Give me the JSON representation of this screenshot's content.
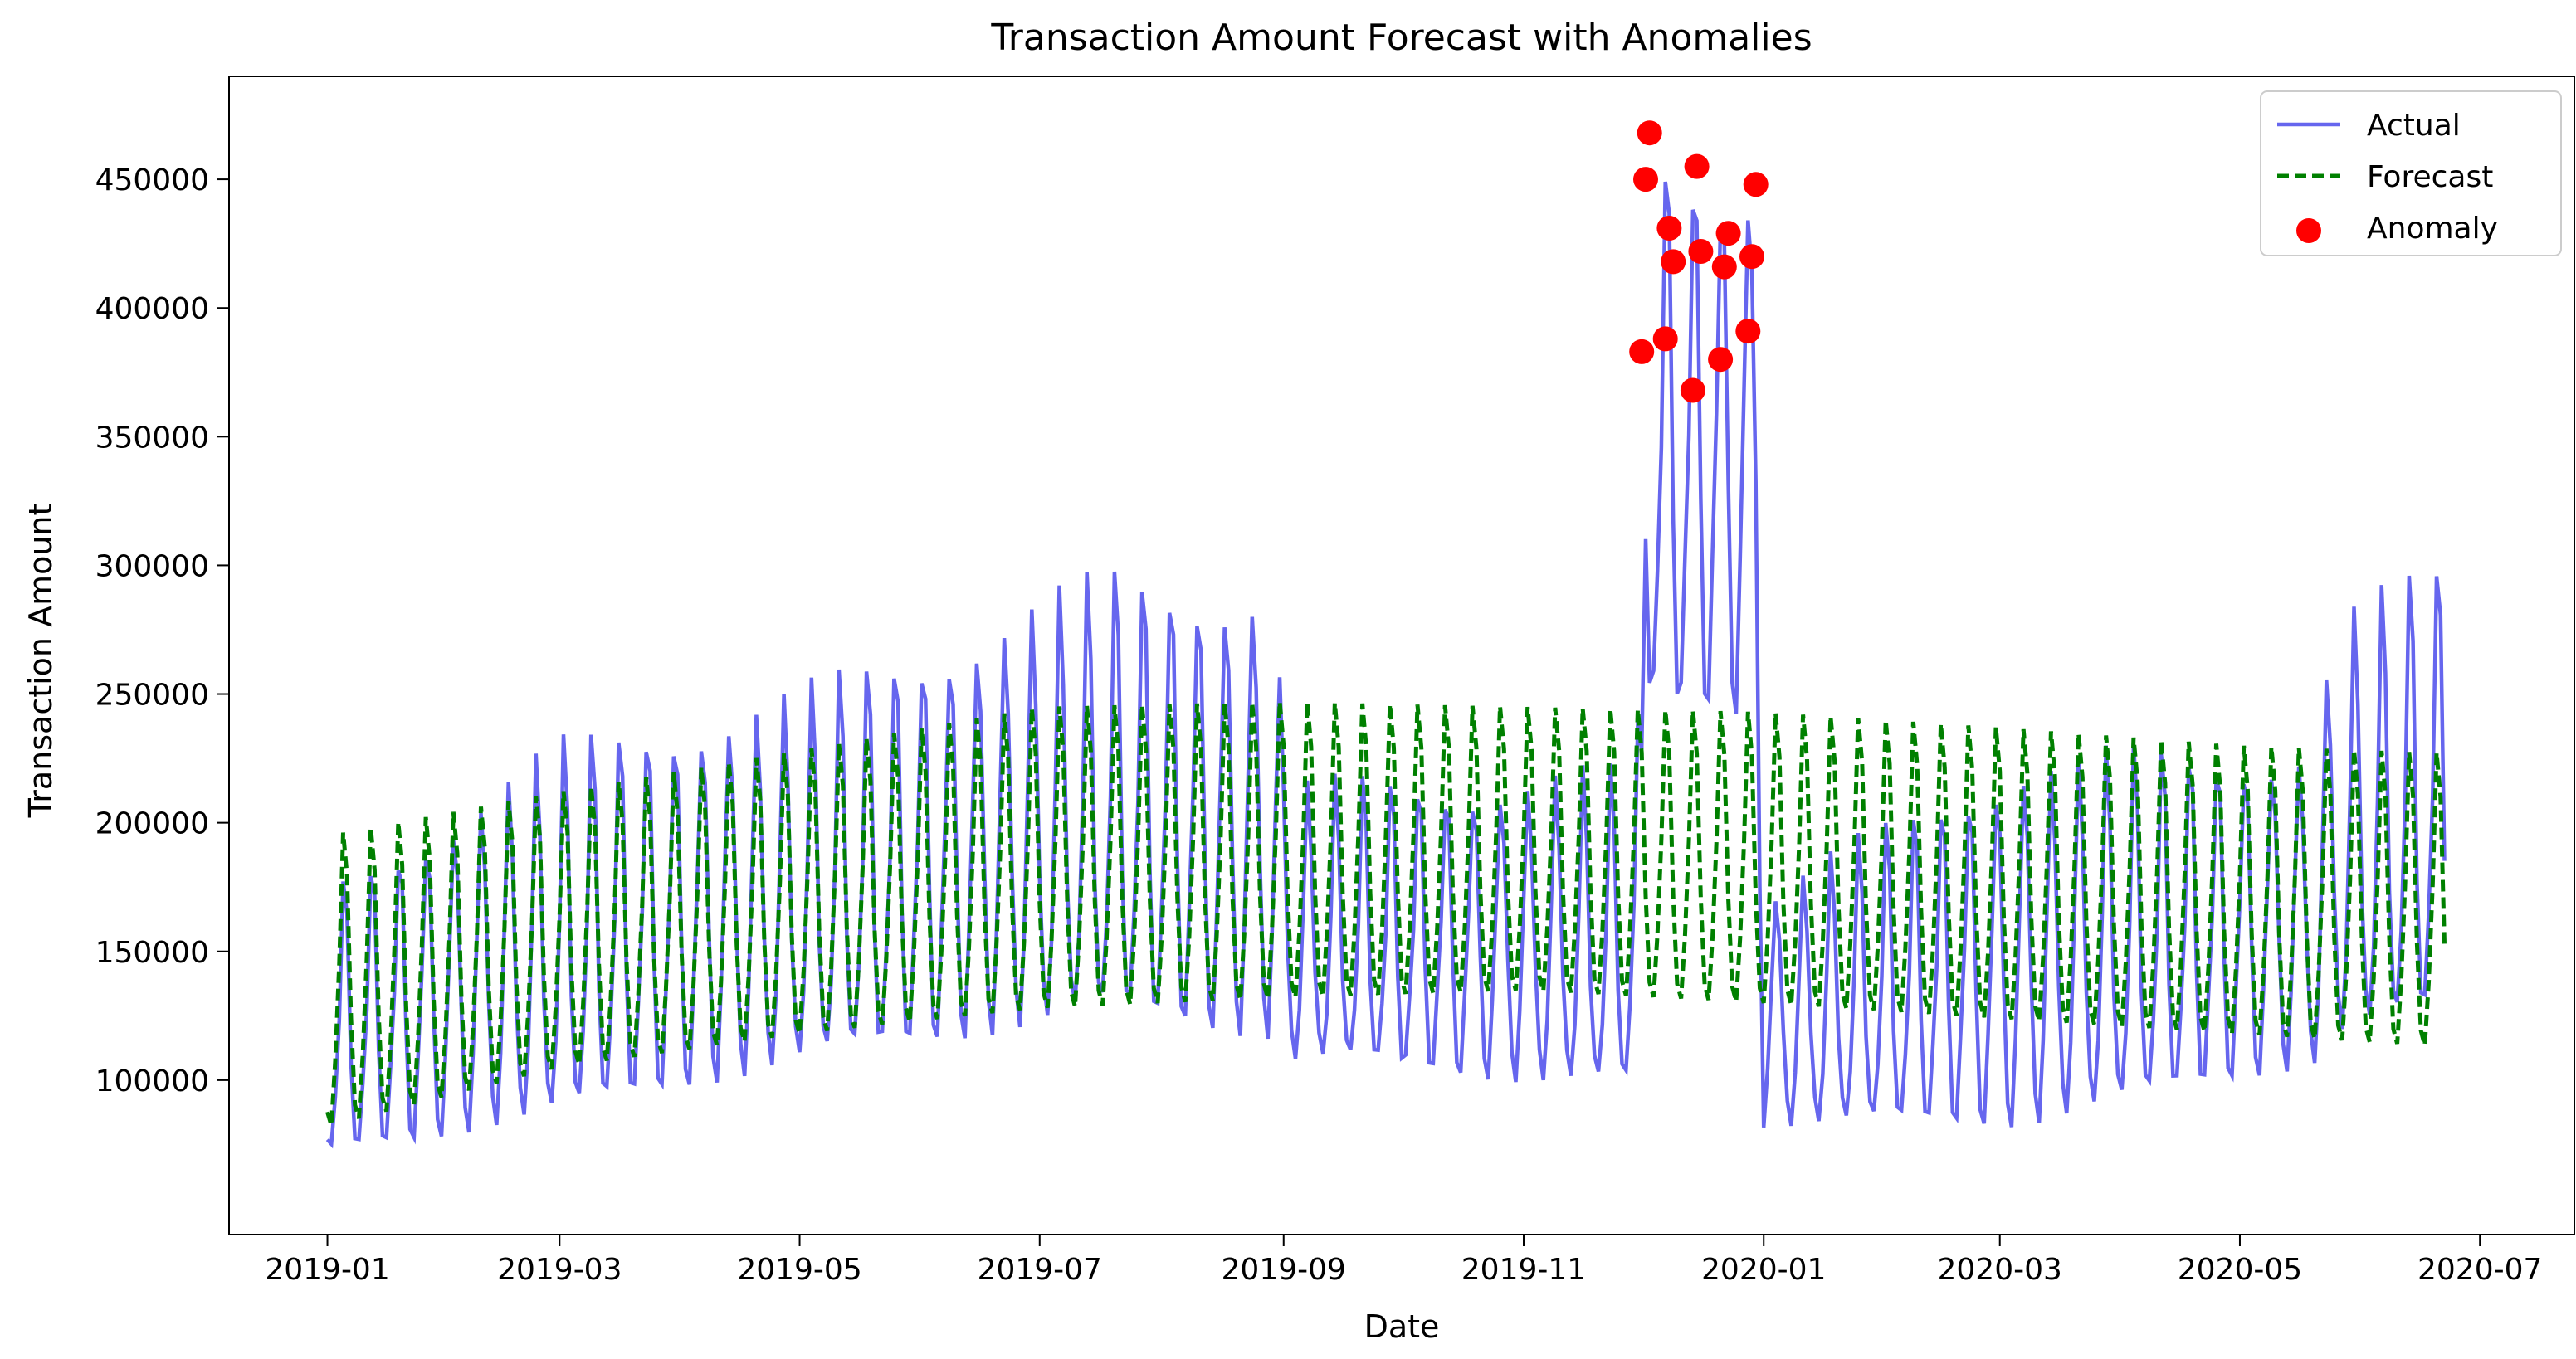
{
  "chart_data": {
    "type": "line",
    "title": "Transaction Amount Forecast with Anomalies",
    "xlabel": "Date",
    "ylabel": "Transaction Amount",
    "grid": false,
    "legend_position": "top-right",
    "x_start_date": "2019-01-01",
    "x_end_date": "2020-06-22",
    "xlim_days": [
      -25,
      571
    ],
    "ylim": [
      40000,
      490000
    ],
    "x_ticks": [
      {
        "day": 0,
        "label": "2019-01"
      },
      {
        "day": 59,
        "label": "2019-03"
      },
      {
        "day": 120,
        "label": "2019-05"
      },
      {
        "day": 181,
        "label": "2019-07"
      },
      {
        "day": 243,
        "label": "2019-09"
      },
      {
        "day": 304,
        "label": "2019-11"
      },
      {
        "day": 365,
        "label": "2020-01"
      },
      {
        "day": 425,
        "label": "2020-03"
      },
      {
        "day": 486,
        "label": "2020-05"
      },
      {
        "day": 547,
        "label": "2020-07"
      }
    ],
    "y_ticks": [
      {
        "value": 100000,
        "label": "100000"
      },
      {
        "value": 150000,
        "label": "150000"
      },
      {
        "value": 200000,
        "label": "200000"
      },
      {
        "value": 250000,
        "label": "250000"
      },
      {
        "value": 300000,
        "label": "300000"
      },
      {
        "value": 350000,
        "label": "350000"
      },
      {
        "value": 400000,
        "label": "400000"
      },
      {
        "value": 450000,
        "label": "450000"
      }
    ],
    "series": [
      {
        "name": "Actual",
        "label": "Actual",
        "color": "#6666ee",
        "style": "solid",
        "generator": "weekly",
        "anchors": [
          {
            "day": 0,
            "low": 72000,
            "high": 170000
          },
          {
            "day": 59,
            "low": 90000,
            "high": 225000
          },
          {
            "day": 120,
            "low": 110000,
            "high": 245000
          },
          {
            "day": 200,
            "low": 130000,
            "high": 290000
          },
          {
            "day": 240,
            "low": 120000,
            "high": 285000
          },
          {
            "day": 245,
            "low": 110000,
            "high": 210000
          },
          {
            "day": 330,
            "low": 100000,
            "high": 215000
          },
          {
            "day": 334,
            "low": 120000,
            "high": 240000
          },
          {
            "day": 335,
            "low": 250000,
            "high": 450000
          },
          {
            "day": 363,
            "low": 250000,
            "high": 450000
          },
          {
            "day": 365,
            "low": 85000,
            "high": 170000
          },
          {
            "day": 430,
            "low": 85000,
            "high": 220000
          },
          {
            "day": 505,
            "low": 110000,
            "high": 225000
          },
          {
            "day": 510,
            "low": 120000,
            "high": 270000
          },
          {
            "day": 538,
            "low": 130000,
            "high": 296000
          }
        ]
      },
      {
        "name": "Forecast",
        "label": "Forecast",
        "color": "#008000",
        "style": "dashed",
        "generator": "weekly",
        "anchors": [
          {
            "day": 0,
            "low": 82000,
            "high": 195000
          },
          {
            "day": 59,
            "low": 105000,
            "high": 212000
          },
          {
            "day": 120,
            "low": 118000,
            "high": 228000
          },
          {
            "day": 181,
            "low": 128000,
            "high": 245000
          },
          {
            "day": 243,
            "low": 132000,
            "high": 247000
          },
          {
            "day": 304,
            "low": 135000,
            "high": 245000
          },
          {
            "day": 365,
            "low": 130000,
            "high": 243000
          },
          {
            "day": 425,
            "low": 124000,
            "high": 237000
          },
          {
            "day": 486,
            "low": 118000,
            "high": 230000
          },
          {
            "day": 538,
            "low": 113000,
            "high": 227000
          }
        ]
      }
    ],
    "anomalies": {
      "name": "Anomaly",
      "label": "Anomaly",
      "color": "#ff0000",
      "points": [
        {
          "day": 334,
          "value": 383000
        },
        {
          "day": 335,
          "value": 450000
        },
        {
          "day": 336,
          "value": 468000
        },
        {
          "day": 340,
          "value": 388000
        },
        {
          "day": 341,
          "value": 431000
        },
        {
          "day": 342,
          "value": 418000
        },
        {
          "day": 347,
          "value": 368000
        },
        {
          "day": 348,
          "value": 455000
        },
        {
          "day": 349,
          "value": 422000
        },
        {
          "day": 354,
          "value": 380000
        },
        {
          "day": 355,
          "value": 416000
        },
        {
          "day": 356,
          "value": 429000
        },
        {
          "day": 361,
          "value": 391000
        },
        {
          "day": 362,
          "value": 420000
        },
        {
          "day": 363,
          "value": 448000
        }
      ]
    }
  }
}
